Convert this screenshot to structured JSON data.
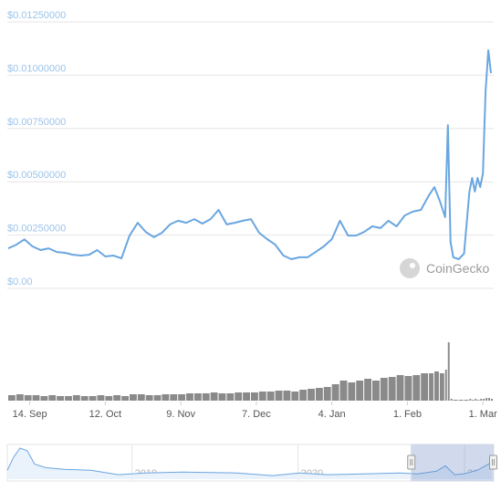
{
  "chart_data": {
    "type": "line",
    "x": [
      "2020-09-06",
      "2020-09-09",
      "2020-09-12",
      "2020-09-15",
      "2020-09-18",
      "2020-09-21",
      "2020-09-24",
      "2020-09-27",
      "2020-09-30",
      "2020-10-03",
      "2020-10-06",
      "2020-10-09",
      "2020-10-12",
      "2020-10-15",
      "2020-10-18",
      "2020-10-21",
      "2020-10-24",
      "2020-10-27",
      "2020-10-30",
      "2020-11-02",
      "2020-11-05",
      "2020-11-08",
      "2020-11-11",
      "2020-11-14",
      "2020-11-17",
      "2020-11-20",
      "2020-11-23",
      "2020-11-26",
      "2020-11-29",
      "2020-12-02",
      "2020-12-05",
      "2020-12-08",
      "2020-12-11",
      "2020-12-14",
      "2020-12-17",
      "2020-12-20",
      "2020-12-23",
      "2020-12-26",
      "2020-12-29",
      "2021-01-01",
      "2021-01-04",
      "2021-01-07",
      "2021-01-10",
      "2021-01-13",
      "2021-01-16",
      "2021-01-19",
      "2021-01-22",
      "2021-01-25",
      "2021-01-28",
      "2021-01-31",
      "2021-02-03",
      "2021-02-06",
      "2021-02-09",
      "2021-02-11",
      "2021-02-13",
      "2021-02-15",
      "2021-02-16",
      "2021-02-17",
      "2021-02-18",
      "2021-02-20",
      "2021-02-22",
      "2021-02-24",
      "2021-02-25",
      "2021-02-26",
      "2021-02-27",
      "2021-02-28",
      "2021-03-01",
      "2021-03-02",
      "2021-03-03",
      "2021-03-04"
    ],
    "series": [
      {
        "color": "#6aa6e0",
        "values": [
          0.00188,
          0.00205,
          0.0023,
          0.00197,
          0.0018,
          0.00188,
          0.00171,
          0.00167,
          0.00158,
          0.00154,
          0.00158,
          0.0018,
          0.0015,
          0.00154,
          0.00141,
          0.00248,
          0.00308,
          0.00265,
          0.0024,
          0.00261,
          0.003,
          0.00317,
          0.00308,
          0.00325,
          0.00304,
          0.00325,
          0.00368,
          0.003,
          0.00308,
          0.00317,
          0.00325,
          0.00261,
          0.00231,
          0.00205,
          0.00154,
          0.00137,
          0.00146,
          0.00146,
          0.00171,
          0.00197,
          0.00231,
          0.00317,
          0.00248,
          0.00248,
          0.00265,
          0.00291,
          0.00283,
          0.00317,
          0.00291,
          0.00342,
          0.0036,
          0.00368,
          0.00437,
          0.00475,
          0.00411,
          0.00334,
          0.00766,
          0.00218,
          0.00146,
          0.00137,
          0.00163,
          0.00454,
          0.00518,
          0.00454,
          0.00518,
          0.00475,
          0.00539,
          0.00925,
          0.01117,
          0.0101
        ]
      }
    ],
    "volume": {
      "color": "#8a8a8a",
      "values": [
        6,
        7,
        6,
        6,
        5,
        6,
        5,
        5,
        6,
        5,
        5,
        6,
        5,
        6,
        5,
        7,
        7,
        6,
        6,
        7,
        7,
        7,
        8,
        8,
        8,
        9,
        8,
        8,
        9,
        9,
        9,
        10,
        10,
        11,
        11,
        10,
        12,
        13,
        14,
        15,
        18,
        22,
        20,
        22,
        24,
        22,
        25,
        26,
        28,
        27,
        28,
        30,
        30,
        32,
        30,
        34,
        64,
        2,
        1,
        1,
        1,
        2,
        1,
        2,
        1,
        2,
        2,
        3,
        3,
        2
      ]
    },
    "xlim": [
      "2020-09-06",
      "2021-03-05"
    ],
    "xticks": [
      {
        "value": "2020-09-14",
        "label": "14. Sep"
      },
      {
        "value": "2020-10-12",
        "label": "12. Oct"
      },
      {
        "value": "2020-11-09",
        "label": "9. Nov"
      },
      {
        "value": "2020-12-07",
        "label": "7. Dec"
      },
      {
        "value": "2021-01-04",
        "label": "4. Jan"
      },
      {
        "value": "2021-02-01",
        "label": "1. Feb"
      },
      {
        "value": "2021-03-01",
        "label": "1. Mar"
      }
    ],
    "ylim": [
      0,
      0.0125
    ],
    "yticks": [
      {
        "value": 0,
        "label": "$0.00"
      },
      {
        "value": 0.0025,
        "label": "$0.00250000"
      },
      {
        "value": 0.005,
        "label": "$0.00500000"
      },
      {
        "value": 0.0075,
        "label": "$0.00750000"
      },
      {
        "value": 0.01,
        "label": "$0.01000000"
      },
      {
        "value": 0.0125,
        "label": "$0.01250000"
      }
    ],
    "grid": true,
    "watermark": "CoinGecko",
    "navigator": {
      "color": "#6aa6e0",
      "x": [
        "2018-04-02",
        "2018-04-16",
        "2018-04-30",
        "2018-05-16",
        "2018-06-01",
        "2018-06-25",
        "2018-08-04",
        "2018-10-03",
        "2018-12-02",
        "2019-01-31",
        "2019-04-21",
        "2019-08-19",
        "2019-11-06",
        "2020-01-05",
        "2020-03-05",
        "2020-05-24",
        "2020-08-12",
        "2020-09-21",
        "2020-10-31",
        "2020-11-20",
        "2020-12-10",
        "2020-12-30",
        "2021-01-29",
        "2021-02-12",
        "2021-03-02"
      ],
      "values": [
        0.004,
        0.01,
        0.014,
        0.0128,
        0.0068,
        0.0052,
        0.0044,
        0.004,
        0.002,
        0.0028,
        0.0032,
        0.0028,
        0.0016,
        0.0028,
        0.002,
        0.0024,
        0.0028,
        0.0024,
        0.0036,
        0.006,
        0.002,
        0.0024,
        0.004,
        0.0056,
        0.0076
      ],
      "xlim": [
        "2018-04-02",
        "2021-03-06"
      ],
      "xticks": [
        {
          "value": "2019-01-01",
          "label": "2019"
        },
        {
          "value": "2020-01-01",
          "label": "2020"
        },
        {
          "value": "2021-01-01",
          "label": "2021"
        }
      ]
    }
  }
}
